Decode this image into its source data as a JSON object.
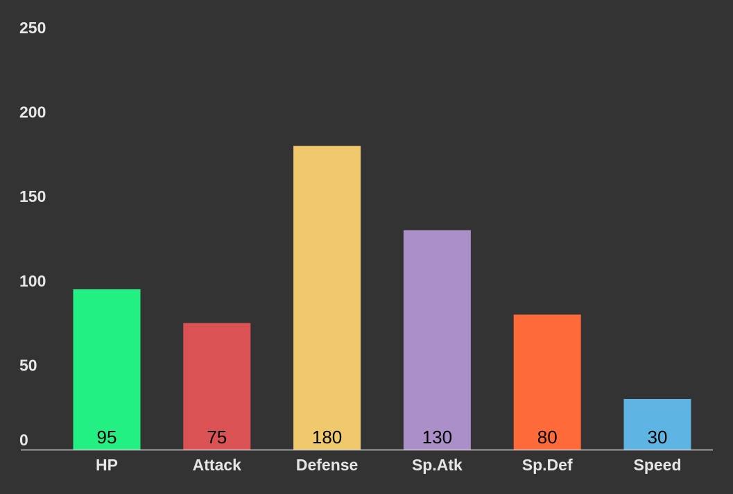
{
  "chart_data": {
    "type": "bar",
    "categories": [
      "HP",
      "Attack",
      "Defense",
      "Sp.Atk",
      "Sp.Def",
      "Speed"
    ],
    "values": [
      95,
      75,
      180,
      130,
      80,
      30
    ],
    "colors": [
      "#22f083",
      "#da5254",
      "#efc96b",
      "#ab8fc9",
      "#ff6a3b",
      "#5eb5e3"
    ],
    "ylim": [
      0,
      250
    ],
    "yticks": [
      0,
      50,
      100,
      150,
      200,
      250
    ],
    "grid": false,
    "legend": "none",
    "title": "",
    "xlabel": "",
    "ylabel": ""
  },
  "style": {
    "background": "#333333",
    "axis_color": "#cccccc",
    "label_color": "#e6e6e6",
    "value_label_color": "#000000"
  }
}
